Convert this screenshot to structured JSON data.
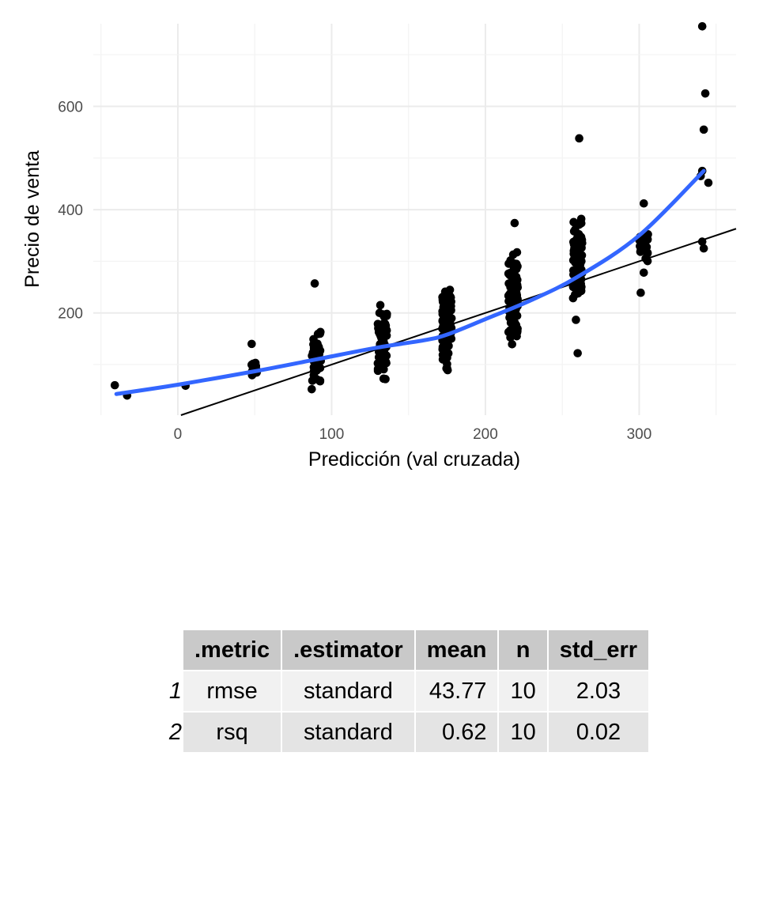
{
  "chart_data": {
    "type": "scatter",
    "xlabel": "Predicción (val cruzada)",
    "ylabel": "Precio de venta",
    "xlim": [
      -55,
      363
    ],
    "ylim": [
      2,
      760
    ],
    "x_ticks": [
      0,
      100,
      200,
      300
    ],
    "y_ticks": [
      200,
      400,
      600
    ],
    "grid": true,
    "reference_line": {
      "type": "identity",
      "slope": 1,
      "intercept": 0,
      "color": "#000000"
    },
    "smooth": {
      "color": "#3366ff",
      "x": [
        -40,
        0,
        50,
        90,
        130,
        160,
        175,
        200,
        230,
        260,
        300,
        342
      ],
      "y": [
        43,
        61,
        87,
        110,
        133,
        147,
        158,
        188,
        225,
        270,
        350,
        475
      ]
    },
    "clusters": [
      {
        "x": 50,
        "n": 14,
        "ymin": 52,
        "ymax": 120
      },
      {
        "x": 90,
        "n": 45,
        "ymin": 40,
        "ymax": 175
      },
      {
        "x": 133,
        "n": 75,
        "ymin": 62,
        "ymax": 228
      },
      {
        "x": 175,
        "n": 110,
        "ymin": 75,
        "ymax": 275
      },
      {
        "x": 218,
        "n": 130,
        "ymin": 117,
        "ymax": 340
      },
      {
        "x": 260,
        "n": 95,
        "ymin": 165,
        "ymax": 430
      },
      {
        "x": 303,
        "n": 22,
        "ymin": 280,
        "ymax": 385
      }
    ],
    "points": [
      {
        "x": -41,
        "y": 60
      },
      {
        "x": -33,
        "y": 40
      },
      {
        "x": 5,
        "y": 59
      },
      {
        "x": 48,
        "y": 140
      },
      {
        "x": 89,
        "y": 257
      },
      {
        "x": 219,
        "y": 374
      },
      {
        "x": 261,
        "y": 538
      },
      {
        "x": 260,
        "y": 122
      },
      {
        "x": 303,
        "y": 412
      },
      {
        "x": 303,
        "y": 278
      },
      {
        "x": 301,
        "y": 239
      },
      {
        "x": 304,
        "y": 350
      },
      {
        "x": 341,
        "y": 755
      },
      {
        "x": 343,
        "y": 625
      },
      {
        "x": 342,
        "y": 555
      },
      {
        "x": 341,
        "y": 475
      },
      {
        "x": 340,
        "y": 465
      },
      {
        "x": 345,
        "y": 452
      },
      {
        "x": 341,
        "y": 338
      },
      {
        "x": 342,
        "y": 325
      }
    ]
  },
  "table": {
    "headers": [
      ".metric",
      ".estimator",
      "mean",
      "n",
      "std_err"
    ],
    "rows": [
      {
        "rowname": "1",
        "metric": "rmse",
        "estimator": "standard",
        "mean": "43.77",
        "n": "10",
        "std_err": "2.03"
      },
      {
        "rowname": "2",
        "metric": "rsq",
        "estimator": "standard",
        "mean": "0.62",
        "n": "10",
        "std_err": "0.02"
      }
    ]
  }
}
